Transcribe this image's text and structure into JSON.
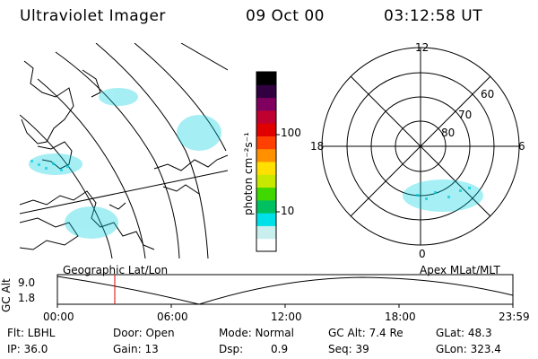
{
  "header": {
    "instrument": "Ultraviolet Imager",
    "date": "09 Oct 00",
    "time": "03:12:58 UT"
  },
  "colorbar": {
    "label": "photon cm⁻²s⁻¹",
    "ticks": [
      "100",
      "10"
    ],
    "colors": [
      "#ffffff",
      "#c8eeee",
      "#00e0e8",
      "#00c060",
      "#40d800",
      "#c8e800",
      "#ffe000",
      "#ff9000",
      "#ff4000",
      "#e00000",
      "#c00030",
      "#800060",
      "#300040",
      "#000000"
    ]
  },
  "geo_panel": {
    "label": "Geographic Lat/Lon"
  },
  "polar_panel": {
    "label": "Apex MLat/MLT",
    "mlt_labels": {
      "top": "12",
      "left": "18",
      "right": "6",
      "bottom": "0"
    },
    "lat_labels": [
      "60",
      "70",
      "80"
    ]
  },
  "altitude_plot": {
    "ylabel": "GC Alt",
    "y_ticks": [
      "9.0",
      "1.8"
    ],
    "x_ticks": [
      "00:00",
      "06:00",
      "12:00",
      "18:00",
      "23:59"
    ],
    "marker_color": "#e00000"
  },
  "info": {
    "row1": {
      "flt": "Flt: LBHL",
      "door": "Door: Open",
      "mode": "Mode: Normal",
      "gc_alt": "GC Alt: 7.4 Re",
      "glat": "GLat:  48.3"
    },
    "row2": {
      "ip": "IP: 36.0",
      "gain": "Gain: 13",
      "dsp_label": "Dsp:",
      "dsp_value": "0.9",
      "seq": "Seq: 39",
      "glon": "GLon: 323.4"
    }
  }
}
